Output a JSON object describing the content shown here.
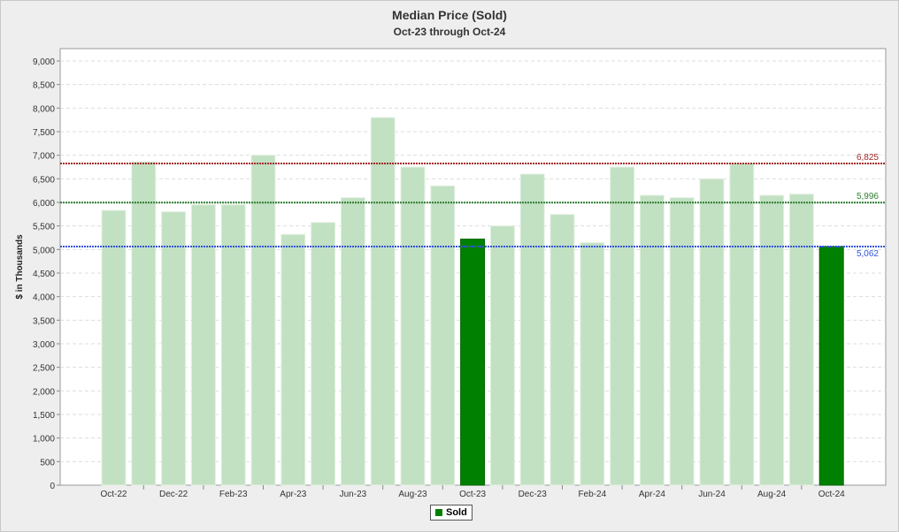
{
  "chart_data": {
    "type": "bar",
    "title": "Median Price (Sold)",
    "subtitle": "Oct-23 through Oct-24",
    "ylabel": "$ in Thousands",
    "xlabel": "",
    "ylim": [
      0,
      9000
    ],
    "yticks": [
      0,
      500,
      1000,
      1500,
      2000,
      2500,
      3000,
      3500,
      4000,
      4500,
      5000,
      5500,
      6000,
      6500,
      7000,
      7500,
      8000,
      8500,
      9000
    ],
    "ytick_labels": [
      "0",
      "500",
      "1,000",
      "1,500",
      "2,000",
      "2,500",
      "3,000",
      "3,500",
      "4,000",
      "4,500",
      "5,000",
      "5,500",
      "6,000",
      "6,500",
      "7,000",
      "7,500",
      "8,000",
      "8,500",
      "9,000"
    ],
    "categories": [
      "Oct-22",
      "Nov-22",
      "Dec-22",
      "Jan-23",
      "Feb-23",
      "Mar-23",
      "Apr-23",
      "May-23",
      "Jun-23",
      "Jul-23",
      "Aug-23",
      "Sep-23",
      "Oct-23",
      "Nov-23",
      "Dec-23",
      "Jan-24",
      "Feb-24",
      "Mar-24",
      "Apr-24",
      "May-24",
      "Jun-24",
      "Jul-24",
      "Aug-24",
      "Sep-24",
      "Oct-24"
    ],
    "xtick_labels": [
      "Oct-22",
      "Dec-22",
      "Feb-23",
      "Apr-23",
      "Jun-23",
      "Aug-23",
      "Oct-23",
      "Dec-23",
      "Feb-24",
      "Apr-24",
      "Jun-24",
      "Aug-24",
      "Oct-24"
    ],
    "values": [
      5830,
      6860,
      5800,
      5950,
      5950,
      7000,
      5320,
      5575,
      6100,
      7800,
      6750,
      6350,
      5220,
      5500,
      6600,
      5745,
      5145,
      6750,
      6150,
      6100,
      6500,
      6825,
      6150,
      6175,
      5062
    ],
    "highlighted": [
      "Oct-23",
      "Oct-24"
    ],
    "reference_lines": [
      {
        "value": 6825,
        "label": "6,825",
        "color": "#a52a2a"
      },
      {
        "value": 5996,
        "label": "5,996",
        "color": "#2e7d32"
      },
      {
        "value": 5062,
        "label": "5,062",
        "color": "#3355dd"
      }
    ],
    "legend": [
      {
        "label": "Sold",
        "color": "#008000"
      }
    ],
    "legend_position": "bottom-center",
    "grid": true,
    "colors": {
      "bar": "#c2e0c2",
      "highlight": "#008000"
    }
  }
}
